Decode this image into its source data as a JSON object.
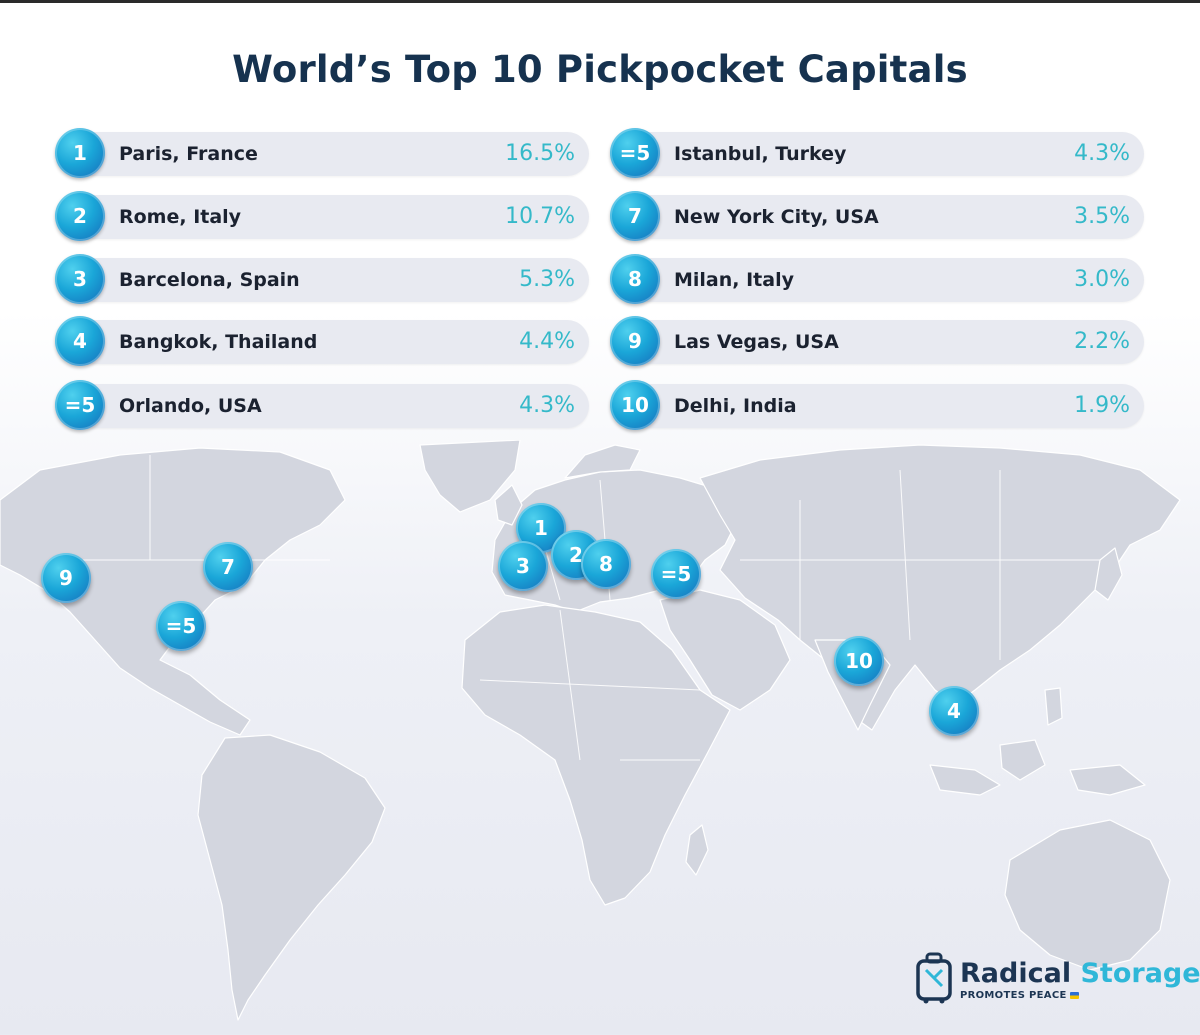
{
  "title": "World’s Top 10 Pickpocket Capitals",
  "left_column": [
    {
      "rank": "1",
      "city": "Paris, France",
      "value": "16.5%"
    },
    {
      "rank": "2",
      "city": "Rome, Italy",
      "value": "10.7%"
    },
    {
      "rank": "3",
      "city": "Barcelona, Spain",
      "value": "5.3%"
    },
    {
      "rank": "4",
      "city": "Bangkok, Thailand",
      "value": "4.4%"
    },
    {
      "rank": "=5",
      "city": "Orlando, USA",
      "value": "4.3%"
    }
  ],
  "right_column": [
    {
      "rank": "=5",
      "city": "Istanbul, Turkey",
      "value": "4.3%"
    },
    {
      "rank": "7",
      "city": "New York City, USA",
      "value": "3.5%"
    },
    {
      "rank": "8",
      "city": "Milan, Italy",
      "value": "3.0%"
    },
    {
      "rank": "9",
      "city": "Las Vegas, USA",
      "value": "2.2%"
    },
    {
      "rank": "10",
      "city": "Delhi, India",
      "value": "1.9%"
    }
  ],
  "map_markers": [
    {
      "label": "1",
      "place": "Paris"
    },
    {
      "label": "2",
      "place": "Rome"
    },
    {
      "label": "3",
      "place": "Barcelona"
    },
    {
      "label": "8",
      "place": "Milan"
    },
    {
      "label": "=5",
      "place": "Istanbul"
    },
    {
      "label": "7",
      "place": "New York City"
    },
    {
      "label": "9",
      "place": "Las Vegas"
    },
    {
      "label": "=5",
      "place": "Orlando"
    },
    {
      "label": "10",
      "place": "Delhi"
    },
    {
      "label": "4",
      "place": "Bangkok"
    }
  ],
  "logo": {
    "name_part1": "Radical",
    "name_part2": "Storage",
    "tagline": "PROMOTES PEACE"
  },
  "colors": {
    "title": "#16324f",
    "badge": "#1aa6d8",
    "value_text": "#34b9c9",
    "pill_bg": "#e8eaf1",
    "land": "#d3d6df",
    "borders": "#ffffff"
  }
}
